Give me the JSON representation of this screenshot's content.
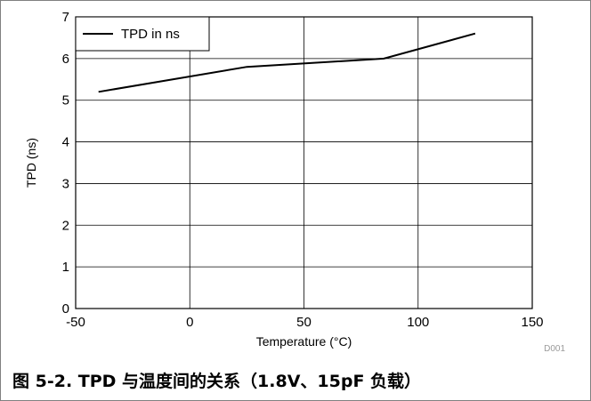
{
  "chart_data": {
    "type": "line",
    "x": [
      -40,
      25,
      85,
      125
    ],
    "series": [
      {
        "name": "TPD in ns",
        "values": [
          5.2,
          5.8,
          6.0,
          6.6
        ],
        "color": "#000000"
      }
    ],
    "xlabel": "Temperature (°C)",
    "ylabel": "TPD (ns)",
    "xlim": [
      -50,
      150
    ],
    "ylim": [
      0,
      7
    ],
    "xticks": [
      -50,
      0,
      50,
      100,
      150
    ],
    "yticks": [
      0,
      1,
      2,
      3,
      4,
      5,
      6,
      7
    ],
    "grid": true,
    "legend_position": "top-left",
    "code_label": "D001"
  },
  "caption": "图 5-2. TPD 与温度间的关系（1.8V、15pF 负载）"
}
